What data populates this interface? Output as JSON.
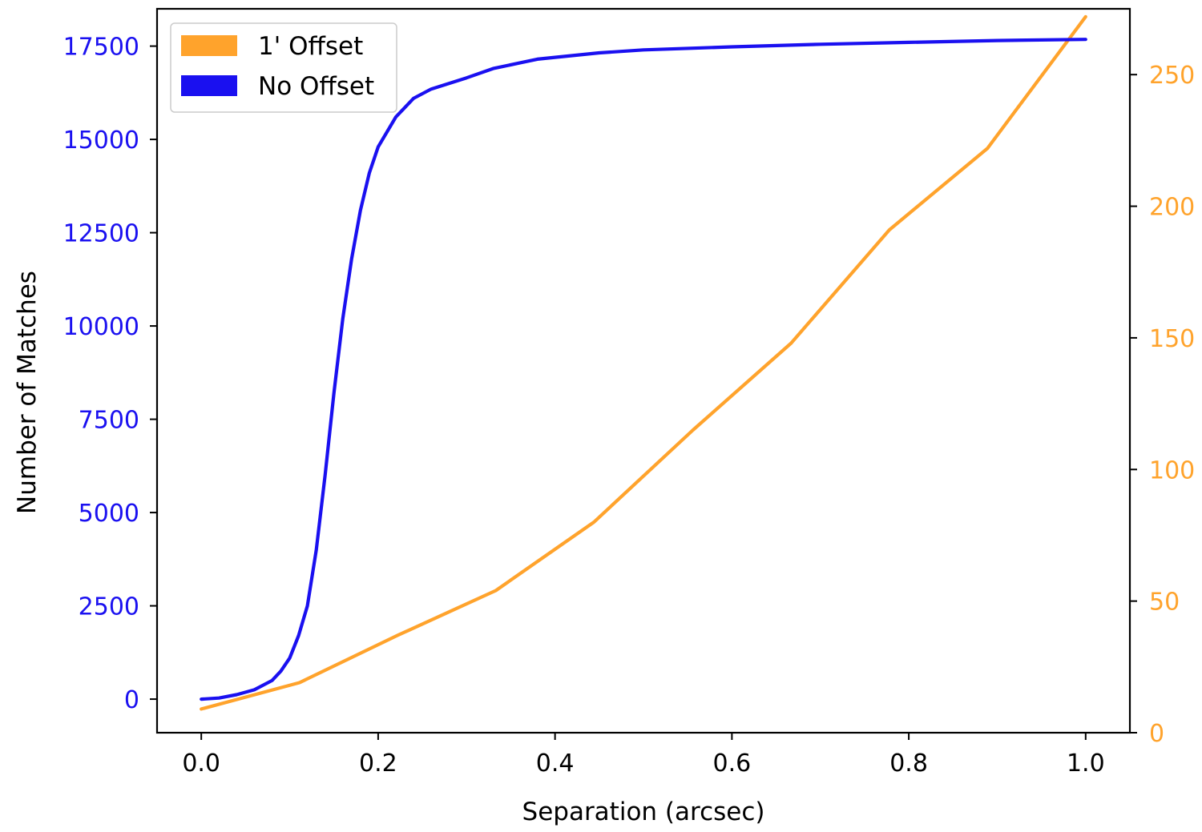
{
  "chart_data": {
    "type": "line",
    "title": "",
    "xlabel": "Separation (arcsec)",
    "ylabel": "Number of Matches",
    "xlim": [
      -0.05,
      1.05
    ],
    "ylim_left": [
      -900,
      18500
    ],
    "ylim_right": [
      0,
      275
    ],
    "xticks": [
      "0.0",
      "0.2",
      "0.4",
      "0.6",
      "0.8",
      "1.0"
    ],
    "yticks_left": [
      "0",
      "2500",
      "5000",
      "7500",
      "10000",
      "12500",
      "15000",
      "17500"
    ],
    "yticks_right": [
      "0",
      "50",
      "100",
      "150",
      "200",
      "250"
    ],
    "grid": false,
    "legend_position": "top-left",
    "colors": {
      "no_offset": "#1a10f0",
      "offset": "#ffa32c"
    },
    "series": [
      {
        "name": "1' Offset",
        "axis": "right",
        "color": "#ffa32c",
        "x": [
          0.0,
          0.111,
          0.222,
          0.333,
          0.444,
          0.556,
          0.667,
          0.778,
          0.889,
          1.0
        ],
        "y": [
          9,
          19,
          37,
          54,
          80,
          115,
          148,
          191,
          222,
          272
        ]
      },
      {
        "name": "No Offset",
        "axis": "left",
        "color": "#1a10f0",
        "x": [
          0.0,
          0.02,
          0.04,
          0.06,
          0.08,
          0.09,
          0.1,
          0.11,
          0.12,
          0.13,
          0.14,
          0.15,
          0.16,
          0.17,
          0.18,
          0.19,
          0.2,
          0.22,
          0.24,
          0.26,
          0.28,
          0.3,
          0.33,
          0.36,
          0.38,
          0.4,
          0.45,
          0.5,
          0.6,
          0.7,
          0.8,
          0.9,
          1.0
        ],
        "y": [
          0,
          30,
          120,
          250,
          500,
          750,
          1100,
          1700,
          2500,
          4000,
          6000,
          8200,
          10200,
          11800,
          13100,
          14100,
          14800,
          15600,
          16100,
          16350,
          16500,
          16650,
          16900,
          17050,
          17150,
          17200,
          17320,
          17400,
          17480,
          17550,
          17600,
          17650,
          17680
        ]
      }
    ]
  }
}
